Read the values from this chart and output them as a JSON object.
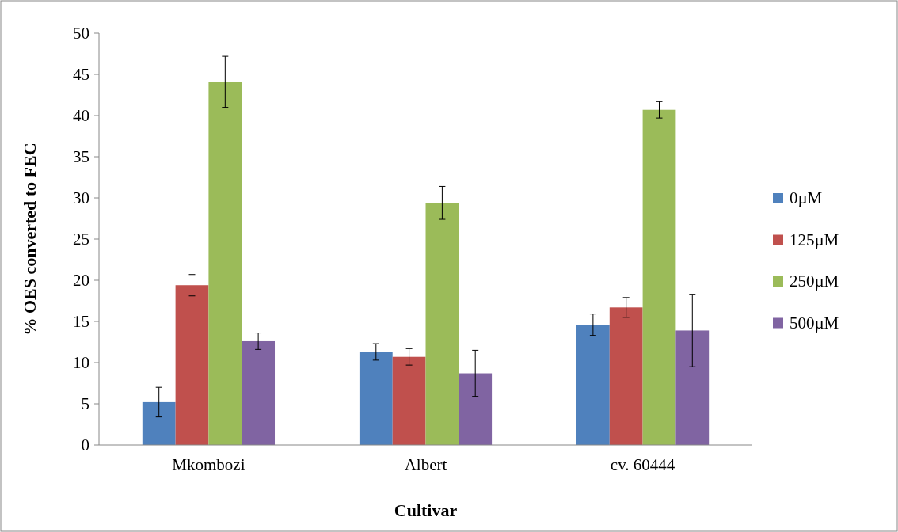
{
  "chart_data": {
    "type": "bar",
    "xlabel": "Cultivar",
    "ylabel": "% OES converted  to FEC",
    "categories": [
      "Mkombozi",
      "Albert",
      "cv. 60444"
    ],
    "series": [
      {
        "name": "0µM",
        "color": "#4f81bd",
        "values": [
          5.2,
          11.3,
          14.6
        ],
        "errors": [
          1.8,
          1,
          1.3
        ]
      },
      {
        "name": "125µM",
        "color": "#c0504d",
        "values": [
          19.4,
          10.7,
          16.7
        ],
        "errors": [
          1.3,
          1,
          1.2
        ]
      },
      {
        "name": "250µM",
        "color": "#9bbb59",
        "values": [
          44.1,
          29.4,
          40.7
        ],
        "errors": [
          3.1,
          2,
          1
        ]
      },
      {
        "name": "500µM",
        "color": "#8064a2",
        "values": [
          12.6,
          8.7,
          13.9
        ],
        "errors": [
          1,
          2.8,
          4.4
        ]
      }
    ],
    "ylim": [
      0,
      50
    ],
    "yticks": [
      0,
      5,
      10,
      15,
      20,
      25,
      30,
      35,
      40,
      45,
      50
    ],
    "legend": "right",
    "grid": false
  }
}
